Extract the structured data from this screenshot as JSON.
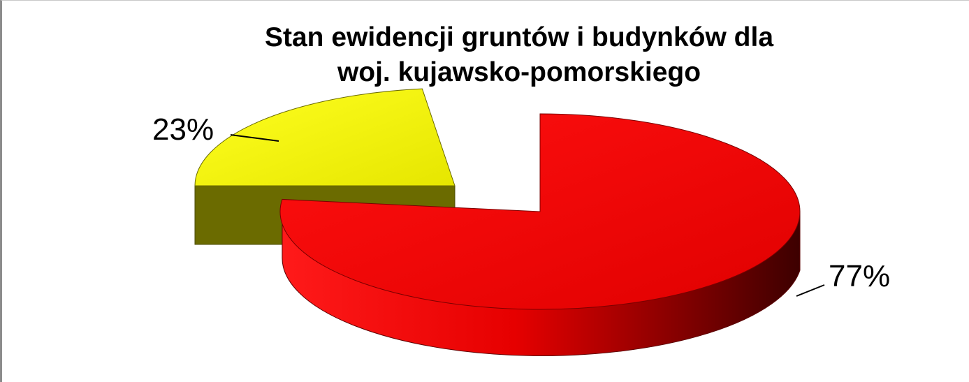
{
  "chart_data": {
    "type": "pie",
    "style": "3d-exploded",
    "title_lines": [
      "Stan ewidencji gruntów i budynków dla",
      "woj. kujawsko-pomorskiego"
    ],
    "slices": [
      {
        "label": "23%",
        "value": 23,
        "color": "#f0f000",
        "side_color": "#6b6b00"
      },
      {
        "label": "77%",
        "value": 77,
        "color": "#ee0000",
        "side_color": "#e00000"
      }
    ],
    "legend": "none"
  }
}
